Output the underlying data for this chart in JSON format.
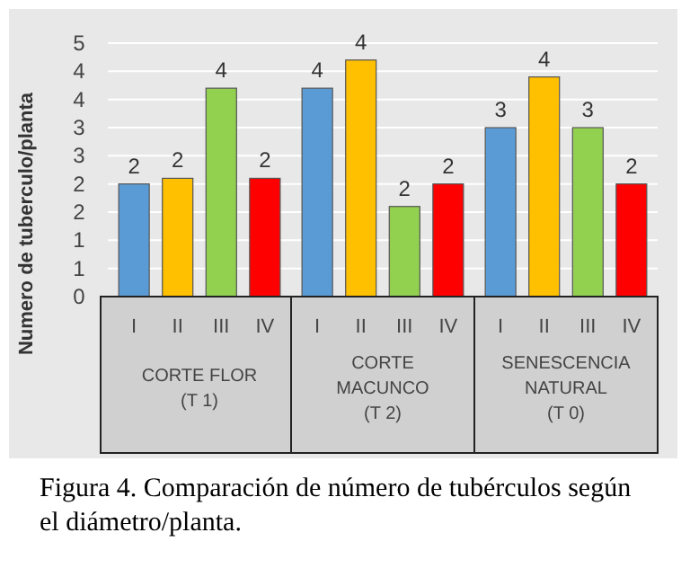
{
  "chart_data": {
    "type": "bar",
    "ylabel": "Numero de tuberculo/planta",
    "categories": [
      "CORTE FLOR (T 1)",
      "CORTE MACUNCO (T 2)",
      "SENESCENCIA NATURAL (T 0)"
    ],
    "series": [
      {
        "name": "I",
        "color": "#5b9bd5",
        "values": [
          2.0,
          3.7,
          3.0
        ],
        "value_labels": [
          "2",
          "4",
          "3"
        ]
      },
      {
        "name": "II",
        "color": "#ffc000",
        "values": [
          2.1,
          4.2,
          3.9
        ],
        "value_labels": [
          "2",
          "4",
          "4"
        ]
      },
      {
        "name": "III",
        "color": "#92d050",
        "values": [
          3.7,
          1.6,
          3.0
        ],
        "value_labels": [
          "4",
          "2",
          "3"
        ]
      },
      {
        "name": "IV",
        "color": "#ff0000",
        "values": [
          2.1,
          2.0,
          2.0
        ],
        "value_labels": [
          "2",
          "2",
          "2"
        ]
      }
    ],
    "ylim": [
      0,
      4.5
    ],
    "yticks": [
      0,
      {
        "value": 0.5,
        "label": "1"
      },
      1,
      {
        "value": 1.5,
        "label": "2"
      },
      2,
      {
        "value": 2.5,
        "label": "3"
      },
      3,
      {
        "value": 3.5,
        "label": "4"
      },
      4,
      {
        "value": 4.5,
        "label": "5"
      }
    ],
    "grid": "y",
    "annotations": [
      "Figura 4. Comparación de número de tubérculos según el diámetro/planta."
    ]
  }
}
